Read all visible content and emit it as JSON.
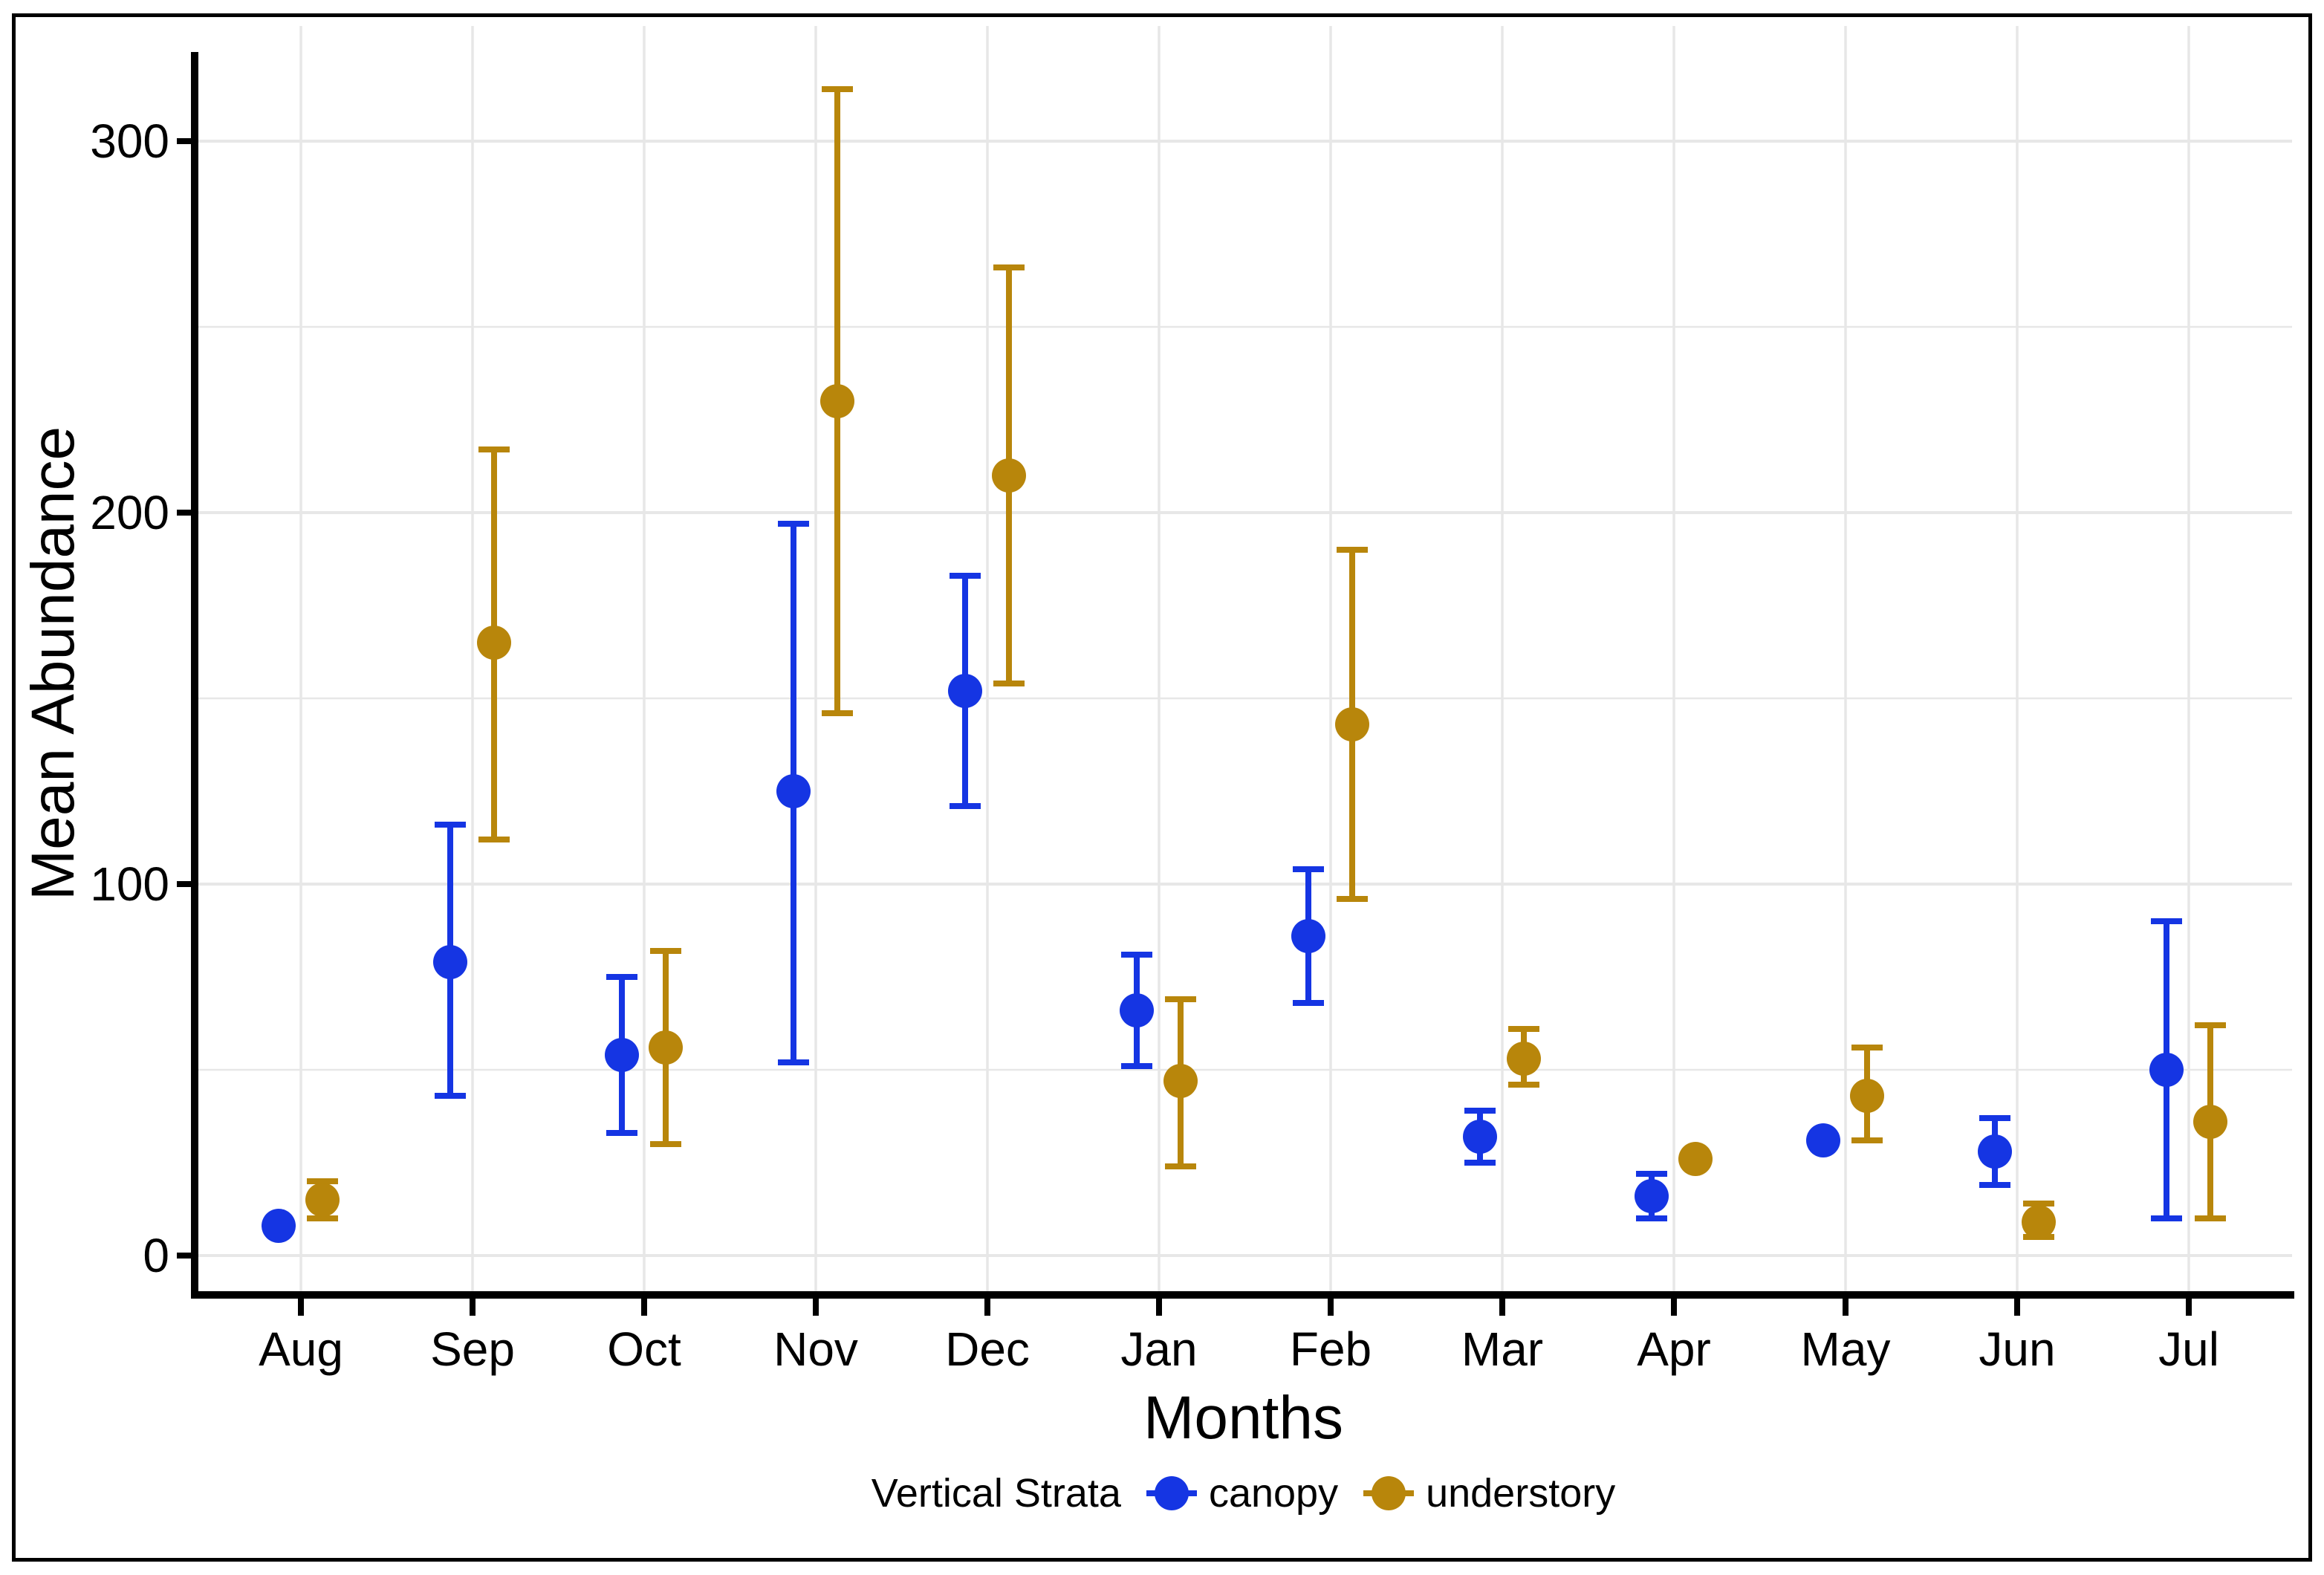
{
  "y_axis": {
    "title": "Mean Abundance"
  },
  "x_axis": {
    "title": "Months"
  },
  "legend": {
    "title": "Vertical Strata",
    "position": "bottom",
    "items": [
      {
        "label": "canopy",
        "color": "#1535E3"
      },
      {
        "label": "understory",
        "color": "#B8860B"
      }
    ]
  },
  "colors": {
    "canopy": "#1535E3",
    "understory": "#B8860B",
    "gridline": "#E7E7E7",
    "axis": "#000000",
    "background": "#FFFFFF"
  },
  "chart_data": {
    "type": "scatter",
    "subtype": "pointrange (mean with error bars), dodged by group",
    "title": "",
    "xlabel": "Months",
    "ylabel": "Mean Abundance",
    "categories": [
      "Aug",
      "Sep",
      "Oct",
      "Nov",
      "Dec",
      "Jan",
      "Feb",
      "Mar",
      "Apr",
      "May",
      "Jun",
      "Jul"
    ],
    "yticks": [
      0,
      100,
      200,
      300
    ],
    "yticks_minor": [
      50,
      150,
      250
    ],
    "ylim": [
      -10,
      330
    ],
    "grid": "light gray horizontal major+minor lines and vertical category lines on white panel",
    "legend_position": "bottom-center",
    "series": [
      {
        "name": "canopy",
        "color": "#1535E3",
        "values": [
          8,
          79,
          54,
          125,
          152,
          66,
          86,
          32,
          16,
          31,
          28,
          50
        ],
        "ci_low": [
          8,
          43,
          33,
          52,
          121,
          51,
          68,
          25,
          10,
          31,
          19,
          10
        ],
        "ci_high": [
          8,
          116,
          75,
          197,
          183,
          81,
          104,
          39,
          22,
          31,
          37,
          90
        ]
      },
      {
        "name": "understory",
        "color": "#B8860B",
        "values": [
          15,
          165,
          56,
          230,
          210,
          47,
          143,
          53,
          26,
          43,
          9,
          36
        ],
        "ci_low": [
          10,
          112,
          30,
          146,
          154,
          24,
          96,
          46,
          26,
          31,
          5,
          10
        ],
        "ci_high": [
          20,
          217,
          82,
          314,
          266,
          69,
          190,
          61,
          26,
          56,
          14,
          62
        ]
      }
    ]
  }
}
